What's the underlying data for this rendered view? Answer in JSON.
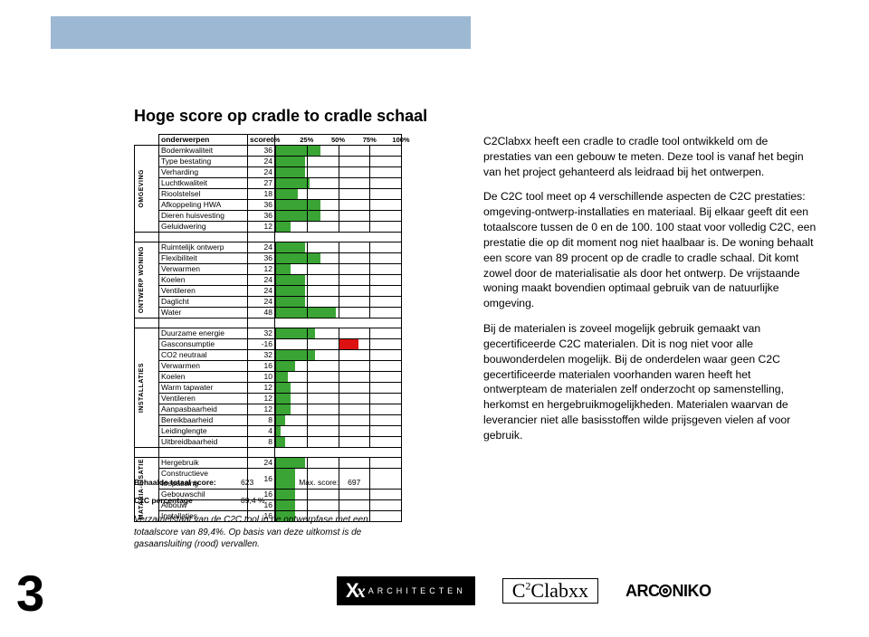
{
  "page_number": "3",
  "topbar_color": "#9db8d3",
  "title": "Hoge score op cradle to cradle schaal",
  "table": {
    "header": {
      "onderwerpen": "onderwerpen",
      "score": "score"
    },
    "pct_labels": [
      "0%",
      "25%",
      "50%",
      "75%",
      "100%"
    ],
    "bar_color_pos": "#3aa535",
    "bar_color_neg": "#dd1111",
    "groups": [
      {
        "name": "OMGEVING",
        "rows": [
          {
            "label": "Bodemkwaliteit",
            "score": 36,
            "pct": 36
          },
          {
            "label": "Type bestating",
            "score": 24,
            "pct": 24
          },
          {
            "label": "Verharding",
            "score": 24,
            "pct": 24
          },
          {
            "label": "Luchtkwaliteit",
            "score": 27,
            "pct": 27
          },
          {
            "label": "Rioolstelsel",
            "score": 18,
            "pct": 18
          },
          {
            "label": "Afkoppeling HWA",
            "score": 36,
            "pct": 36
          },
          {
            "label": "Dieren huisvesting",
            "score": 36,
            "pct": 36
          },
          {
            "label": "Geluidwering",
            "score": 12,
            "pct": 12
          }
        ]
      },
      {
        "name": "ONTWERP WONING",
        "rows": [
          {
            "label": "Ruimtelijk ontwerp",
            "score": 24,
            "pct": 24
          },
          {
            "label": "Flexibiliteit",
            "score": 36,
            "pct": 36
          },
          {
            "label": "Verwarmen",
            "score": 12,
            "pct": 12
          },
          {
            "label": "Koelen",
            "score": 24,
            "pct": 24
          },
          {
            "label": "Ventileren",
            "score": 24,
            "pct": 24
          },
          {
            "label": "Daglicht",
            "score": 24,
            "pct": 24
          },
          {
            "label": "Water",
            "score": 48,
            "pct": 48
          }
        ]
      },
      {
        "name": "INSTALLATIES",
        "rows": [
          {
            "label": "Duurzame energie",
            "score": 32,
            "pct": 32
          },
          {
            "label": "Gasconsumptie",
            "score": -16,
            "pct": -16
          },
          {
            "label": "CO2 neutraal",
            "score": 32,
            "pct": 32
          },
          {
            "label": "Verwarmen",
            "score": 16,
            "pct": 16
          },
          {
            "label": "Koelen",
            "score": 10,
            "pct": 10
          },
          {
            "label": "Warm tapwater",
            "score": 12,
            "pct": 12
          },
          {
            "label": "Ventileren",
            "score": 12,
            "pct": 12
          },
          {
            "label": "Aanpasbaarheid",
            "score": 12,
            "pct": 12
          },
          {
            "label": "Bereikbaarheid",
            "score": 8,
            "pct": 8
          },
          {
            "label": "Leidinglengte",
            "score": 4,
            "pct": 4
          },
          {
            "label": "Uitbreidbaarheid",
            "score": 8,
            "pct": 8
          }
        ]
      },
      {
        "name": "MATARIA-LISATIE",
        "rows": [
          {
            "label": "Hergebruik",
            "score": 24,
            "pct": 24
          },
          {
            "label": "Constructieve toepassing",
            "score": 16,
            "pct": 16
          },
          {
            "label": "Gebouwschil",
            "score": 16,
            "pct": 16
          },
          {
            "label": "Afbouw",
            "score": 16,
            "pct": 16
          },
          {
            "label": "Installaties",
            "score": 16,
            "pct": 16
          }
        ]
      }
    ]
  },
  "summary": {
    "total_label": "Behaalde totaal score:",
    "total_value": "623",
    "max_label": "Max. score:",
    "max_value": "697",
    "pct_label": "C2C percentage",
    "pct_value": "89,4 %"
  },
  "caption": "Verzamelstaat van de C2C tool in de ontwerpfase met een totaalscore van 89,4%. Op basis van deze uitkomst is de gasaansluiting (rood) vervallen.",
  "body": {
    "p1": "C2Clabxx heeft een cradle to cradle tool ontwikkeld om de prestaties van een gebouw te meten. Deze tool is vanaf het begin van het project gehanteerd als leidraad bij het ontwerpen.",
    "p2": "De C2C tool meet op 4 verschillende aspecten de C2C prestaties: omgeving-ontwerp-installaties en materiaal. Bij elkaar geeft dit een totaalscore tussen de 0 en de 100. 100 staat voor volledig C2C, een prestatie die op dit moment nog niet haalbaar is. De woning behaalt een score van 89 procent op de cradle to cradle schaal. Dit komt zowel door de materialisatie als door het ontwerp. De vrijstaande woning maakt bovendien optimaal gebruik van de natuurlijke omgeving.",
    "p3": "Bij de materialen is zoveel mogelijk gebruik gemaakt van gecertificeerde C2C materialen. Dit is nog niet voor alle bouwonderdelen mogelijk. Bij de onderdelen waar geen C2C gecertificeerde materialen voorhanden waren heeft het ontwerpteam de materialen zelf onderzocht op samenstelling, herkomst en hergebruikmogelijkheden. Materialen waarvan de leverancier niet alle basisstoffen wilde prijsgeven vielen af voor gebruik."
  },
  "footer": {
    "xx_label": "ARCHITECTEN",
    "c2c_label_a": "C",
    "c2c_sup": "2",
    "c2c_label_b": "Clabxx",
    "arconiko": "ARCONIKO"
  }
}
